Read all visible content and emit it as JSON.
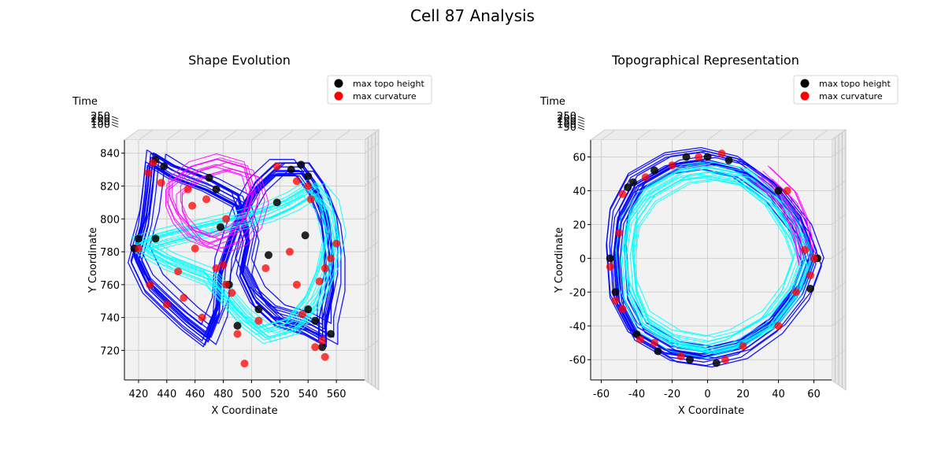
{
  "figure": {
    "suptitle": "Cell 87 Analysis"
  },
  "colors": {
    "contour_a": "#0000ff",
    "contour_b": "#00ffff",
    "contour_c": "#ff00ff",
    "max_topo_height": "#000000",
    "max_curvature": "#ff0000",
    "pane": "#f2f2f2"
  },
  "chart_data": [
    {
      "type": "line",
      "title": "Shape Evolution",
      "xlabel": "X Coordinate",
      "ylabel": "Y Coordinate",
      "zlabel": "Time",
      "xlim": [
        410,
        580
      ],
      "ylim": [
        702,
        848
      ],
      "zlim": [
        0,
        250
      ],
      "xticks": [
        420,
        440,
        460,
        480,
        500,
        520,
        540,
        560
      ],
      "yticks": [
        720,
        740,
        760,
        780,
        800,
        820,
        840
      ],
      "zticks": [
        250,
        200,
        150,
        100
      ],
      "grid": true,
      "legend_position": "top-right",
      "legend": [
        {
          "label": "max topo height",
          "color": "#000000"
        },
        {
          "label": "max curvature",
          "color": "#ff0000"
        }
      ],
      "series": [
        {
          "color": "#0000ff",
          "points": [
            [
              430,
              838
            ],
            [
              445,
              830
            ],
            [
              470,
              822
            ],
            [
              492,
              812
            ],
            [
              500,
              790
            ],
            [
              495,
              770
            ],
            [
              505,
              752
            ],
            [
              520,
              740
            ],
            [
              540,
              735
            ],
            [
              555,
              728
            ],
            [
              555,
              740
            ],
            [
              560,
              760
            ],
            [
              560,
              780
            ],
            [
              557,
              800
            ],
            [
              548,
              820
            ],
            [
              538,
              832
            ],
            [
              520,
              832
            ],
            [
              505,
              820
            ],
            [
              492,
              800
            ],
            [
              480,
              770
            ],
            [
              478,
              745
            ],
            [
              470,
              728
            ],
            [
              455,
              738
            ],
            [
              440,
              750
            ],
            [
              428,
              760
            ],
            [
              418,
              778
            ],
            [
              425,
              800
            ],
            [
              428,
              820
            ],
            [
              430,
              838
            ]
          ]
        },
        {
          "color": "#00ffff",
          "points": [
            [
              420,
              785
            ],
            [
              440,
              790
            ],
            [
              465,
              795
            ],
            [
              490,
              800
            ],
            [
              512,
              805
            ],
            [
              530,
              812
            ],
            [
              545,
              820
            ],
            [
              555,
              810
            ],
            [
              560,
              790
            ],
            [
              555,
              770
            ],
            [
              545,
              750
            ],
            [
              530,
              735
            ],
            [
              510,
              730
            ],
            [
              495,
              740
            ],
            [
              480,
              755
            ],
            [
              470,
              765
            ],
            [
              455,
              770
            ],
            [
              440,
              775
            ],
            [
              420,
              785
            ]
          ]
        },
        {
          "color": "#ff00ff",
          "points": [
            [
              445,
              820
            ],
            [
              460,
              830
            ],
            [
              480,
              835
            ],
            [
              500,
              830
            ],
            [
              505,
              815
            ],
            [
              500,
              800
            ],
            [
              490,
              790
            ],
            [
              475,
              785
            ],
            [
              460,
              790
            ],
            [
              450,
              800
            ],
            [
              445,
              810
            ],
            [
              445,
              820
            ]
          ]
        }
      ],
      "max_topo_height": [
        [
          432,
          836
        ],
        [
          438,
          832
        ],
        [
          470,
          825
        ],
        [
          475,
          818
        ],
        [
          478,
          795
        ],
        [
          484,
          760
        ],
        [
          490,
          735
        ],
        [
          512,
          778
        ],
        [
          528,
          830
        ],
        [
          535,
          833
        ],
        [
          540,
          826
        ],
        [
          538,
          790
        ],
        [
          550,
          722
        ],
        [
          556,
          730
        ],
        [
          545,
          738
        ],
        [
          540,
          745
        ],
        [
          420,
          788
        ],
        [
          417,
          782
        ],
        [
          432,
          788
        ],
        [
          518,
          810
        ],
        [
          505,
          745
        ]
      ],
      "max_curvature": [
        [
          430,
          834
        ],
        [
          427,
          828
        ],
        [
          436,
          822
        ],
        [
          455,
          818
        ],
        [
          468,
          812
        ],
        [
          482,
          800
        ],
        [
          480,
          772
        ],
        [
          482,
          760
        ],
        [
          486,
          755
        ],
        [
          490,
          730
        ],
        [
          495,
          712
        ],
        [
          505,
          738
        ],
        [
          518,
          832
        ],
        [
          532,
          823
        ],
        [
          540,
          820
        ],
        [
          542,
          812
        ],
        [
          560,
          785
        ],
        [
          556,
          776
        ],
        [
          552,
          770
        ],
        [
          548,
          762
        ],
        [
          550,
          726
        ],
        [
          545,
          722
        ],
        [
          552,
          716
        ],
        [
          420,
          782
        ],
        [
          428,
          760
        ],
        [
          440,
          748
        ],
        [
          452,
          752
        ],
        [
          448,
          768
        ],
        [
          460,
          782
        ],
        [
          475,
          770
        ],
        [
          465,
          740
        ],
        [
          458,
          808
        ],
        [
          527,
          780
        ],
        [
          532,
          760
        ],
        [
          536,
          742
        ],
        [
          510,
          770
        ]
      ]
    },
    {
      "type": "line",
      "title": "Topographical Representation",
      "xlabel": "X Coordinate",
      "ylabel": "Y Coordinate",
      "zlabel": "Time",
      "xlim": [
        -66,
        70
      ],
      "ylim": [
        -72,
        70
      ],
      "zlim": [
        0,
        250
      ],
      "xticks": [
        -60,
        -40,
        -20,
        0,
        20,
        40,
        60
      ],
      "yticks": [
        -60,
        -40,
        -20,
        0,
        20,
        40,
        60
      ],
      "zticks": [
        250,
        200,
        150,
        100,
        50
      ],
      "grid": true,
      "legend_position": "top-right",
      "legend": [
        {
          "label": "max topo height",
          "color": "#000000"
        },
        {
          "label": "max curvature",
          "color": "#ff0000"
        }
      ],
      "series": [
        {
          "color": "#0000ff",
          "points": [
            [
              -52,
              5
            ],
            [
              -50,
              25
            ],
            [
              -40,
              45
            ],
            [
              -20,
              57
            ],
            [
              0,
              60
            ],
            [
              20,
              55
            ],
            [
              40,
              40
            ],
            [
              55,
              20
            ],
            [
              62,
              0
            ],
            [
              55,
              -20
            ],
            [
              40,
              -40
            ],
            [
              20,
              -55
            ],
            [
              0,
              -60
            ],
            [
              -20,
              -57
            ],
            [
              -40,
              -45
            ],
            [
              -50,
              -25
            ],
            [
              -52,
              5
            ]
          ]
        },
        {
          "color": "#00ffff",
          "points": [
            [
              -48,
              5
            ],
            [
              -45,
              25
            ],
            [
              -35,
              40
            ],
            [
              -15,
              52
            ],
            [
              0,
              54
            ],
            [
              20,
              50
            ],
            [
              38,
              35
            ],
            [
              50,
              15
            ],
            [
              55,
              0
            ],
            [
              48,
              -20
            ],
            [
              35,
              -38
            ],
            [
              15,
              -50
            ],
            [
              0,
              -54
            ],
            [
              -20,
              -50
            ],
            [
              -38,
              -38
            ],
            [
              -46,
              -18
            ],
            [
              -48,
              5
            ]
          ]
        },
        {
          "color": "#ff00ff",
          "points": [
            [
              30,
              50
            ],
            [
              45,
              35
            ],
            [
              52,
              18
            ],
            [
              55,
              0
            ]
          ]
        }
      ],
      "max_topo_height": [
        [
          -45,
          42
        ],
        [
          -30,
          52
        ],
        [
          -12,
          60
        ],
        [
          0,
          60
        ],
        [
          12,
          58
        ],
        [
          -55,
          0
        ],
        [
          -52,
          -20
        ],
        [
          -40,
          -45
        ],
        [
          -28,
          -55
        ],
        [
          -10,
          -60
        ],
        [
          5,
          -62
        ],
        [
          40,
          40
        ],
        [
          62,
          0
        ],
        [
          58,
          -18
        ],
        [
          -42,
          45
        ]
      ],
      "max_curvature": [
        [
          -48,
          38
        ],
        [
          -35,
          48
        ],
        [
          -20,
          55
        ],
        [
          -5,
          60
        ],
        [
          8,
          62
        ],
        [
          -50,
          15
        ],
        [
          -55,
          -5
        ],
        [
          -48,
          -30
        ],
        [
          -38,
          -48
        ],
        [
          -15,
          -58
        ],
        [
          10,
          -60
        ],
        [
          45,
          40
        ],
        [
          55,
          5
        ],
        [
          60,
          0
        ],
        [
          58,
          -10
        ],
        [
          50,
          -20
        ],
        [
          40,
          -40
        ],
        [
          20,
          -52
        ],
        [
          -30,
          -50
        ],
        [
          -52,
          -25
        ]
      ]
    }
  ]
}
